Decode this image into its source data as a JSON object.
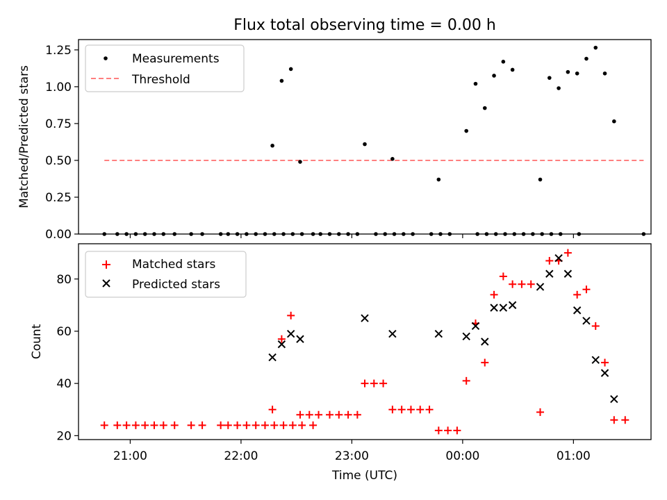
{
  "colors": {
    "measurements": "#000000",
    "threshold": "#ff7f7f",
    "matched": "#ff0000",
    "predicted": "#000000"
  },
  "chart_data": [
    {
      "type": "scatter",
      "title": "Flux total observing time = 0.00 h",
      "xlabel": "",
      "ylabel": "Matched/Predicted stars",
      "x_axis": "time",
      "xlim": [
        "20:32",
        "01:42"
      ],
      "ylim": [
        0,
        1.32
      ],
      "yticks": [
        0,
        0.25,
        0.5,
        0.75,
        1.0,
        1.25
      ],
      "ytick_labels": [
        "0.00",
        "0.25",
        "0.50",
        "0.75",
        "1.00",
        "1.25"
      ],
      "grid": false,
      "legend": "top-left",
      "series": [
        {
          "name": "Measurements",
          "marker": "dot",
          "points": [
            [
              "20:46",
              0
            ],
            [
              "20:53",
              0
            ],
            [
              "20:58",
              0
            ],
            [
              "21:03",
              0
            ],
            [
              "21:08",
              0
            ],
            [
              "21:13",
              0
            ],
            [
              "21:18",
              0
            ],
            [
              "21:24",
              0
            ],
            [
              "21:33",
              0
            ],
            [
              "21:39",
              0
            ],
            [
              "21:49",
              0
            ],
            [
              "21:53",
              0
            ],
            [
              "21:58",
              0
            ],
            [
              "22:03",
              0
            ],
            [
              "22:08",
              0
            ],
            [
              "22:13",
              0
            ],
            [
              "22:18",
              0
            ],
            [
              "22:23",
              0
            ],
            [
              "22:28",
              0
            ],
            [
              "22:33",
              0
            ],
            [
              "22:39",
              0
            ],
            [
              "22:43",
              0
            ],
            [
              "22:48",
              0
            ],
            [
              "22:53",
              0
            ],
            [
              "22:58",
              0
            ],
            [
              "23:03",
              0
            ],
            [
              "23:13",
              0
            ],
            [
              "23:18",
              0
            ],
            [
              "23:23",
              0
            ],
            [
              "23:28",
              0
            ],
            [
              "23:33",
              0
            ],
            [
              "23:43",
              0
            ],
            [
              "23:48",
              0
            ],
            [
              "23:53",
              0
            ],
            [
              "00:08",
              0
            ],
            [
              "00:13",
              0
            ],
            [
              "00:18",
              0
            ],
            [
              "00:23",
              0
            ],
            [
              "00:28",
              0
            ],
            [
              "00:33",
              0
            ],
            [
              "00:38",
              0
            ],
            [
              "00:43",
              0
            ],
            [
              "00:48",
              0
            ],
            [
              "00:53",
              0
            ],
            [
              "01:03",
              0
            ],
            [
              "01:38",
              0
            ],
            [
              "22:17",
              0.6
            ],
            [
              "22:22",
              1.04
            ],
            [
              "22:27",
              1.12
            ],
            [
              "22:32",
              0.49
            ],
            [
              "23:07",
              0.61
            ],
            [
              "23:22",
              0.51
            ],
            [
              "23:47",
              0.37
            ],
            [
              "00:02",
              0.7
            ],
            [
              "00:07",
              1.02
            ],
            [
              "00:12",
              0.855
            ],
            [
              "00:17",
              1.075
            ],
            [
              "00:22",
              1.17
            ],
            [
              "00:27",
              1.115
            ],
            [
              "00:42",
              0.37
            ],
            [
              "00:47",
              1.06
            ],
            [
              "00:52",
              0.99
            ],
            [
              "00:57",
              1.1
            ],
            [
              "01:02",
              1.09
            ],
            [
              "01:07",
              1.19
            ],
            [
              "01:12",
              1.265
            ],
            [
              "01:17",
              1.09
            ],
            [
              "01:22",
              0.765
            ]
          ]
        },
        {
          "name": "Threshold",
          "marker": "dashed-line",
          "points": [
            [
              "20:46",
              0.5
            ],
            [
              "01:38",
              0.5
            ]
          ]
        }
      ]
    },
    {
      "type": "scatter",
      "title": "",
      "xlabel": "Time (UTC)",
      "ylabel": "Count",
      "x_axis": "time",
      "xlim": [
        "20:32",
        "01:42"
      ],
      "ylim": [
        18.5,
        93.5
      ],
      "yticks": [
        20,
        40,
        60,
        80
      ],
      "ytick_labels": [
        "20",
        "40",
        "60",
        "80"
      ],
      "xticks": [
        "21:00",
        "22:00",
        "23:00",
        "00:00",
        "01:00"
      ],
      "xtick_labels": [
        "21:00",
        "22:00",
        "23:00",
        "00:00",
        "01:00"
      ],
      "grid": false,
      "legend": "top-left",
      "series": [
        {
          "name": "Matched stars",
          "marker": "plus",
          "points": [
            [
              "20:46",
              24
            ],
            [
              "20:53",
              24
            ],
            [
              "20:58",
              24
            ],
            [
              "21:03",
              24
            ],
            [
              "21:08",
              24
            ],
            [
              "21:13",
              24
            ],
            [
              "21:18",
              24
            ],
            [
              "21:24",
              24
            ],
            [
              "21:33",
              24
            ],
            [
              "21:39",
              24
            ],
            [
              "21:49",
              24
            ],
            [
              "21:53",
              24
            ],
            [
              "21:58",
              24
            ],
            [
              "22:03",
              24
            ],
            [
              "22:08",
              24
            ],
            [
              "22:13",
              24
            ],
            [
              "22:18",
              24
            ],
            [
              "22:23",
              24
            ],
            [
              "22:28",
              24
            ],
            [
              "22:33",
              24
            ],
            [
              "22:39",
              24
            ],
            [
              "22:17",
              30
            ],
            [
              "22:22",
              57
            ],
            [
              "22:27",
              66
            ],
            [
              "22:32",
              28
            ],
            [
              "22:37",
              28
            ],
            [
              "22:42",
              28
            ],
            [
              "22:48",
              28
            ],
            [
              "22:53",
              28
            ],
            [
              "22:58",
              28
            ],
            [
              "23:03",
              28
            ],
            [
              "23:07",
              40
            ],
            [
              "23:12",
              40
            ],
            [
              "23:17",
              40
            ],
            [
              "23:22",
              30
            ],
            [
              "23:27",
              30
            ],
            [
              "23:32",
              30
            ],
            [
              "23:37",
              30
            ],
            [
              "23:42",
              30
            ],
            [
              "23:47",
              22
            ],
            [
              "23:52",
              22
            ],
            [
              "23:57",
              22
            ],
            [
              "00:02",
              41
            ],
            [
              "00:07",
              63
            ],
            [
              "00:12",
              48
            ],
            [
              "00:17",
              74
            ],
            [
              "00:22",
              81
            ],
            [
              "00:27",
              78
            ],
            [
              "00:32",
              78
            ],
            [
              "00:37",
              78
            ],
            [
              "00:42",
              29
            ],
            [
              "00:47",
              87
            ],
            [
              "00:52",
              87
            ],
            [
              "00:57",
              90
            ],
            [
              "01:02",
              74
            ],
            [
              "01:07",
              76
            ],
            [
              "01:12",
              62
            ],
            [
              "01:17",
              48
            ],
            [
              "01:22",
              26
            ],
            [
              "01:28",
              26
            ]
          ]
        },
        {
          "name": "Predicted stars",
          "marker": "x",
          "points": [
            [
              "22:17",
              50
            ],
            [
              "22:22",
              55
            ],
            [
              "22:27",
              59
            ],
            [
              "22:32",
              57
            ],
            [
              "23:07",
              65
            ],
            [
              "23:22",
              59
            ],
            [
              "23:47",
              59
            ],
            [
              "00:02",
              58
            ],
            [
              "00:07",
              62
            ],
            [
              "00:12",
              56
            ],
            [
              "00:17",
              69
            ],
            [
              "00:22",
              69
            ],
            [
              "00:27",
              70
            ],
            [
              "00:42",
              77
            ],
            [
              "00:47",
              82
            ],
            [
              "00:52",
              88
            ],
            [
              "00:57",
              82
            ],
            [
              "01:02",
              68
            ],
            [
              "01:07",
              64
            ],
            [
              "01:12",
              49
            ],
            [
              "01:17",
              44
            ],
            [
              "01:22",
              34
            ]
          ]
        }
      ]
    }
  ]
}
